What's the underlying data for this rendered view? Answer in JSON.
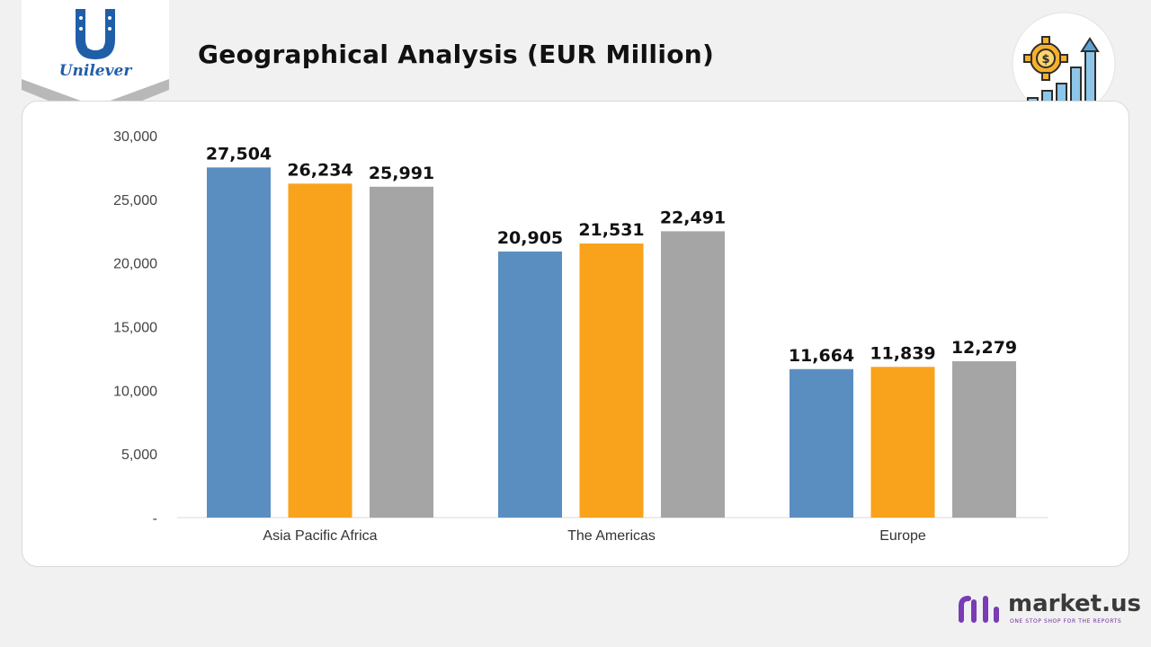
{
  "header": {
    "title": "Geographical Analysis (EUR Million)",
    "logo_text": "Unilever"
  },
  "brand": {
    "name": "market.us",
    "tagline": "ONE STOP SHOP FOR THE REPORTS"
  },
  "colors": {
    "series": [
      "#5a8ec0",
      "#f9a21b",
      "#a5a5a5"
    ],
    "brand_purple": "#6a2fa0",
    "unilever_blue": "#1f5fa8"
  },
  "icons": [
    "unilever-logo-icon",
    "growth-gear-icon",
    "market-us-logo-icon"
  ],
  "chart_data": {
    "type": "bar",
    "categories": [
      "Asia Pacific Africa",
      "The Americas",
      "Europe"
    ],
    "series": [
      {
        "values": [
          27504,
          20905,
          11664
        ]
      },
      {
        "values": [
          26234,
          21531,
          11839
        ]
      },
      {
        "values": [
          25991,
          22491,
          12279
        ]
      }
    ],
    "data_labels": [
      [
        "27,504",
        "20,905",
        "11,664"
      ],
      [
        "26,234",
        "21,531",
        "11,839"
      ],
      [
        "25,991",
        "22,491",
        "12,279"
      ]
    ],
    "ylim": [
      0,
      30000
    ],
    "yticks": [
      0,
      5000,
      10000,
      15000,
      20000,
      25000,
      30000
    ],
    "ytick_labels": [
      "-",
      "5,000",
      "10,000",
      "15,000",
      "20,000",
      "25,000",
      "30,000"
    ],
    "grid": false,
    "legend": "none"
  }
}
